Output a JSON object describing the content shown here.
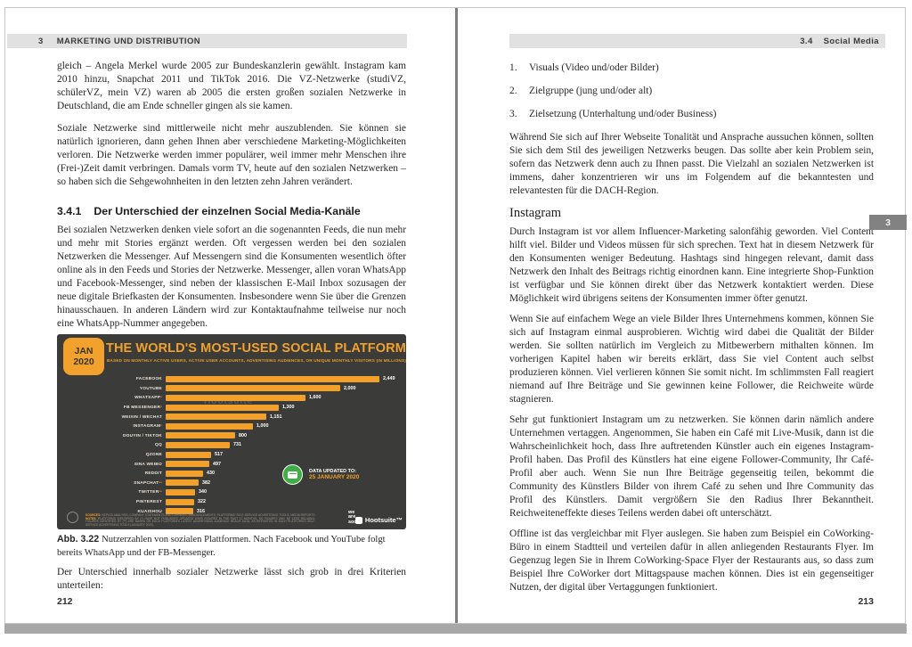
{
  "left_page": {
    "header": {
      "chapter_num": "3",
      "title": "MARKETING UND DISTRIBUTION"
    },
    "intro_paragraphs": [
      "gleich – Angela Merkel wurde 2005 zur Bundeskanzlerin gewählt. Instagram kam 2010 hinzu, Snapchat 2011 und TikTok 2016. Die VZ-Netzwerke (studiVZ, schülerVZ, mein VZ) waren ab 2005 die ersten großen sozialen Netzwerke in Deutschland, die am Ende schneller gingen als sie kamen.",
      "Soziale Netzwerke sind mittlerweile nicht mehr auszublenden. Sie können sie natürlich ignorieren, dann gehen Ihnen aber verschiedene Marketing-Möglichkeiten verloren. Die Netzwerke werden immer populärer, weil immer mehr Menschen ihre (Frei-)Zeit damit verbringen. Damals vorm TV, heute auf den sozialen Netzwerken – so haben sich die Sehgewohnheiten in den letzten zehn Jahren verändert."
    ],
    "section": {
      "number": "3.4.1",
      "title": "Der Unterschied der einzelnen Social Media-Kanäle"
    },
    "section_paragraph": "Bei sozialen Netzwerken denken viele sofort an die sogenannten Feeds, die nun mehr und mehr mit Stories ergänzt werden. Oft vergessen werden bei den sozialen Netzwerken die Messenger. Auf Messengern sind die Konsumenten wesentlich öfter online als in den Feeds und Stories der Netzwerke. Messenger, allen voran WhatsApp und Facebook-Messenger, sind neben der klassischen E-Mail Inbox sozusagen der neue digitale Briefkasten der Konsumenten. Insbesondere wenn Sie über die Grenzen hinausschauen. In anderen Ländern wird zur Kontaktaufnahme teilweise nur noch eine WhatsApp-Nummer angegeben.",
    "figure": {
      "label": "Abb. 3.22",
      "caption": "Nutzerzahlen von sozialen Plattformen. Nach Facebook und YouTube folgt bereits WhatsApp und der FB-Messenger."
    },
    "closing_paragraph": "Der Unterschied innerhalb sozialer Netzwerke lässt sich grob in drei Kriterien unterteilen:",
    "page_number": "212"
  },
  "chart_data": {
    "type": "bar",
    "title": "THE WORLD'S MOST-USED SOCIAL PLATFORMS",
    "subtitle": "BASED ON MONTHLY ACTIVE USERS, ACTIVE USER ACCOUNTS, ADVERTISING AUDIENCES, OR UNIQUE MONTHLY VISITORS (IN MILLIONS)",
    "date_badge": {
      "month": "JAN",
      "year": "2020"
    },
    "xlim": [
      0,
      2500
    ],
    "xmax": 2449,
    "legend_position": "none",
    "grid": false,
    "platforms": [
      {
        "name": "FACEBOOK",
        "note": "",
        "value": 2449,
        "label": "2,449"
      },
      {
        "name": "YOUTUBE",
        "note": "",
        "value": 2000,
        "label": "2,000"
      },
      {
        "name": "WHATSAPP",
        "note": "*",
        "value": 1600,
        "label": "1,600"
      },
      {
        "name": "FB MESSENGER",
        "note": "*",
        "value": 1300,
        "label": "1,300"
      },
      {
        "name": "WEIXIN / WECHAT",
        "note": "",
        "value": 1151,
        "label": "1,151"
      },
      {
        "name": "INSTAGRAM",
        "note": "*",
        "value": 1000,
        "label": "1,000"
      },
      {
        "name": "DOUYIN / TIKTOK",
        "note": "",
        "value": 800,
        "label": "800"
      },
      {
        "name": "QQ",
        "note": "",
        "value": 731,
        "label": "731"
      },
      {
        "name": "QZONE",
        "note": "",
        "value": 517,
        "label": "517"
      },
      {
        "name": "SINA WEIBO",
        "note": "",
        "value": 497,
        "label": "497"
      },
      {
        "name": "REDDIT",
        "note": "",
        "value": 430,
        "label": "430"
      },
      {
        "name": "SNAPCHAT",
        "note": "**",
        "value": 382,
        "label": "382"
      },
      {
        "name": "TWITTER",
        "note": "**",
        "value": 340,
        "label": "340"
      },
      {
        "name": "PINTEREST",
        "note": "",
        "value": 322,
        "label": "322"
      },
      {
        "name": "KUAISHOU",
        "note": "",
        "value": 316,
        "label": "316"
      }
    ],
    "data_updated": {
      "label": "DATA UPDATED TO:",
      "date": "25 JANUARY 2020"
    },
    "watermark": "Hootsuite",
    "footer": {
      "sources_label": "SOURCES:",
      "sources_text": " KEPIOS ANALYSIS; COMPANY STATEMENTS AND EARNINGS ANNOUNCEMENTS; PLATFORMS' SELF-SERVICE ADVERTISING TOOLS; MEDIA REPORTS. ",
      "notes_label": "NOTES:",
      "notes_text": " PLATFORMS IDENTIFIED BY (*) HAVE NOT PUBLISHED UPDATED USER FIGURES IN THE PAST 12 MONTHS, SO FIGURES MAY BE LESS RELIABLE. FIGURES IDENTIFIED BY (**) ARE BASED ON EACH PLATFORM'S LATEST ADVERTISING AUDIENCE REACH DATA, AS REPORTED IN EACH PLATFORM'S SELF-SERVICE ADVERTISING TOOLS (JANUARY 2020).",
      "brand_we_are_social": "we\nare\nsocial",
      "brand_hootsuite": "Hootsuite™"
    },
    "colors": {
      "background": "#3B3B39",
      "bar": "#F3A02A",
      "accent": "#F2A12C",
      "green": "#3FAE49",
      "value_text": "#FFFFFF"
    }
  },
  "right_page": {
    "header": {
      "section_num": "3.4",
      "title": "Social Media"
    },
    "criteria": [
      {
        "num": "1.",
        "text": "Visuals (Video und/oder Bilder)"
      },
      {
        "num": "2.",
        "text": "Zielgruppe (jung und/oder alt)"
      },
      {
        "num": "3.",
        "text": "Zielsetzung (Unterhaltung und/oder Business)"
      }
    ],
    "intro_paragraph": "Während Sie sich auf Ihrer Webseite Tonalität und Ansprache aussuchen können, sollten Sie sich dem Stil des jeweiligen Netzwerks beugen. Das sollte aber kein Problem sein, sofern das Netzwerk denn auch zu Ihnen passt. Die Vielzahl an sozialen Netzwerken ist immens, daher konzentrieren wir uns im Folgendem auf die bekanntesten und relevantesten für die DACH-Region.",
    "instagram_heading": "Instagram",
    "instagram_paragraphs": [
      "Durch Instagram ist vor allem Influencer-Marketing salonfähig geworden. Viel Content hilft viel. Bilder und Videos müssen für sich sprechen. Text hat in diesem Netzwerk für den Konsumenten weniger Bedeutung. Hashtags sind hingegen relevant, damit dass Netzwerk den Inhalt des Beitrags richtig einordnen kann. Eine integrierte Shop-Funktion ist verfügbar und Sie können direkt über das Netzwerk kontaktiert werden. Diese Möglichkeit wird übrigens seitens der Konsumenten immer öfter genutzt.",
      "Wenn Sie auf einfachem Wege an viele Bilder Ihres Unternehmens kommen, können Sie sich auf Instagram einmal ausprobieren. Wichtig wird dabei die Qualität der Bilder werden. Sie sollten natürlich im Vergleich zu Mitbewerbern mithalten können. Im vorherigen Kapitel haben wir bereits erklärt, dass Sie viel Content auch selbst produzieren können. Viel verlieren können Sie somit nicht. Im schlimmsten Fall reagiert niemand auf Ihre Beiträge und Sie gewinnen keine Follower, die Reichweite würde stagnieren.",
      "Sehr gut funktioniert Instagram um zu netzwerken. Sie können darin nämlich andere Unternehmen vertaggen. Angenommen, Sie haben ein Café mit Live-Musik, dann ist die Wahrscheinlichkeit hoch, dass Ihre auftretenden Künstler auch ein eigenes Instagram-Profil haben. Das Profil des Künstlers hat eine eigene Follower-Community, Ihr Café-Profil aber auch. Wenn Sie nun Ihre Beiträge gegenseitig teilen, bekommt die Community des Künstlers Bilder von ihrem Café zu sehen und Ihre Community das Profil des Künstlers. Damit vergrößern Sie den Radius Ihrer Bekanntheit. Reichweiteneffekte dieses Teilens werden dabei oft unterschätzt.",
      "Offline ist das vergleichbar mit Flyer auslegen. Sie haben zum Beispiel ein CoWorking-Büro in einem Stadtteil und verteilen dafür in allen anliegenden Restaurants Flyer. Im Gegenzug legen Sie in Ihrem CoWorking-Space Flyer der Restaurants aus, so dass zum Beispiel Ihre CoWorker dort Mittagspause machen können. Dies ist ein gegenseitiger Nutzen, der digital über Vertaggungen funktioniert."
    ],
    "chapter_tab": "3",
    "page_number": "213"
  }
}
